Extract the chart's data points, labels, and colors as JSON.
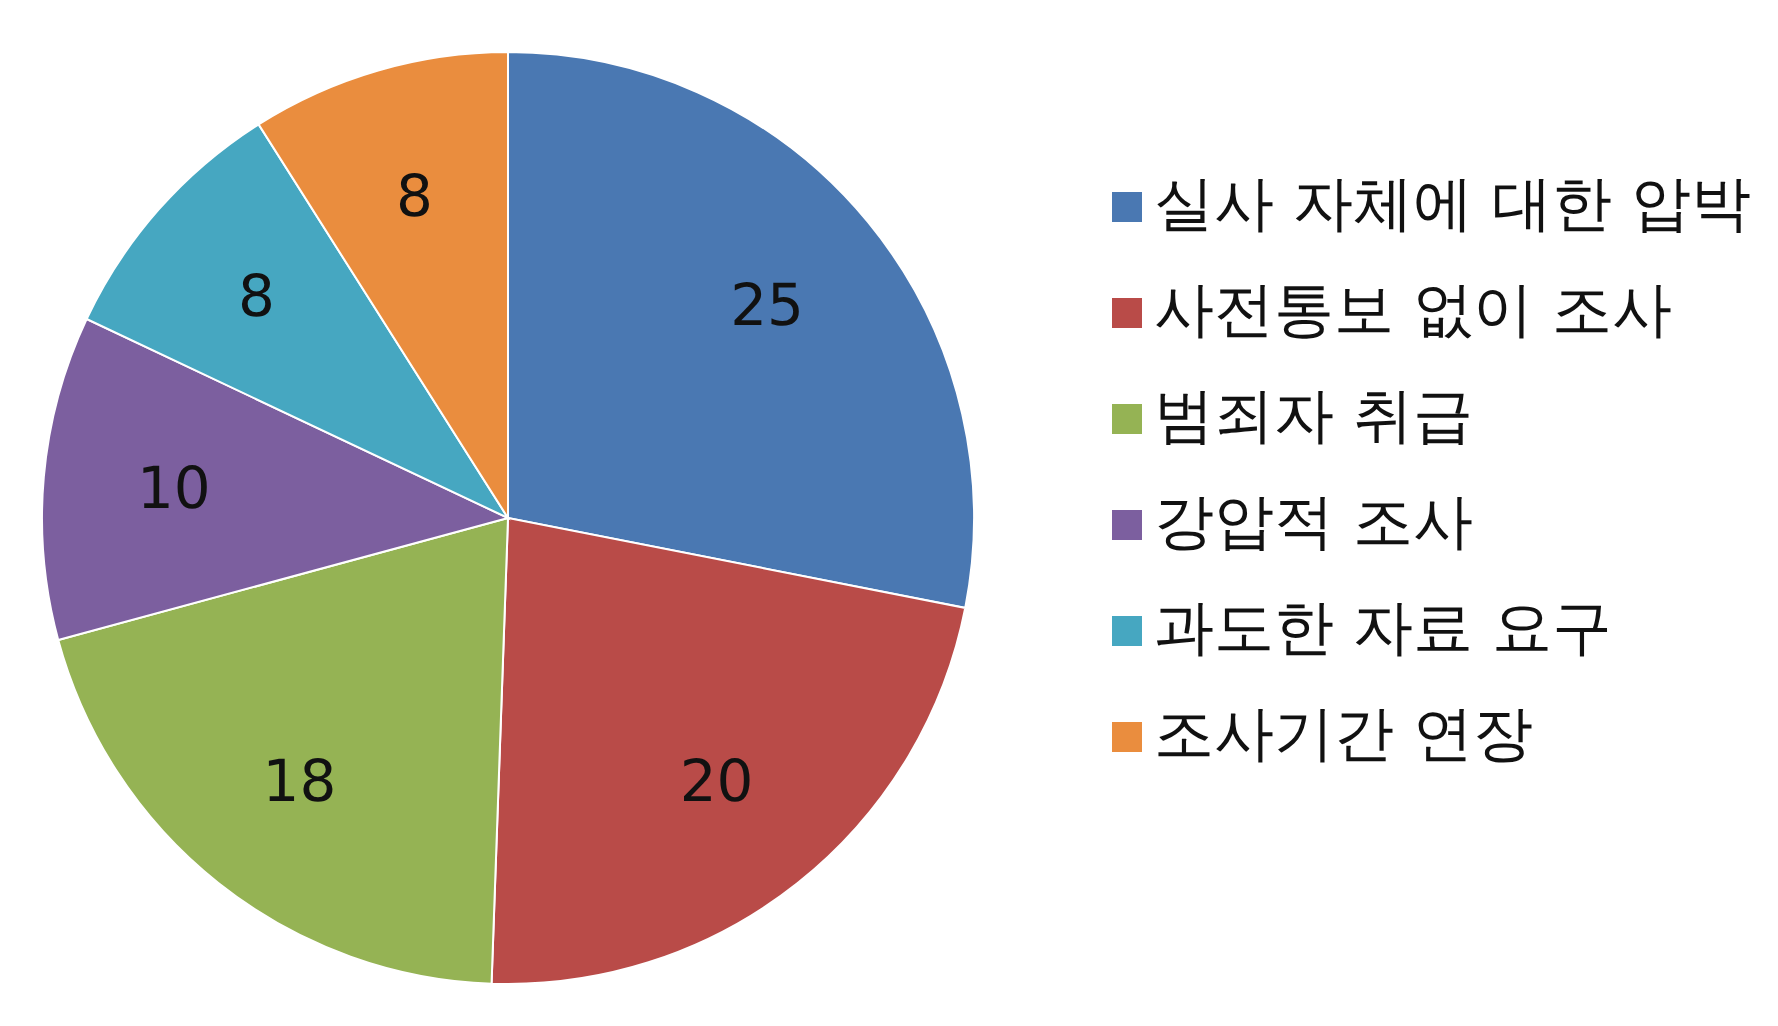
{
  "chart_data": {
    "type": "pie",
    "categories": [
      "실사 자체에 대한 압박",
      "사전통보 없이 조사",
      "범죄자 취급",
      "강압적 조사",
      "과도한 자료 요구",
      "조사기간 연장"
    ],
    "values": [
      25,
      20,
      18,
      10,
      8,
      8
    ],
    "colors": [
      "#4a78b2",
      "#b94b48",
      "#95b354",
      "#7c5f9f",
      "#46a7c1",
      "#ea8d3e"
    ],
    "data_labels": true,
    "legend": "right"
  }
}
